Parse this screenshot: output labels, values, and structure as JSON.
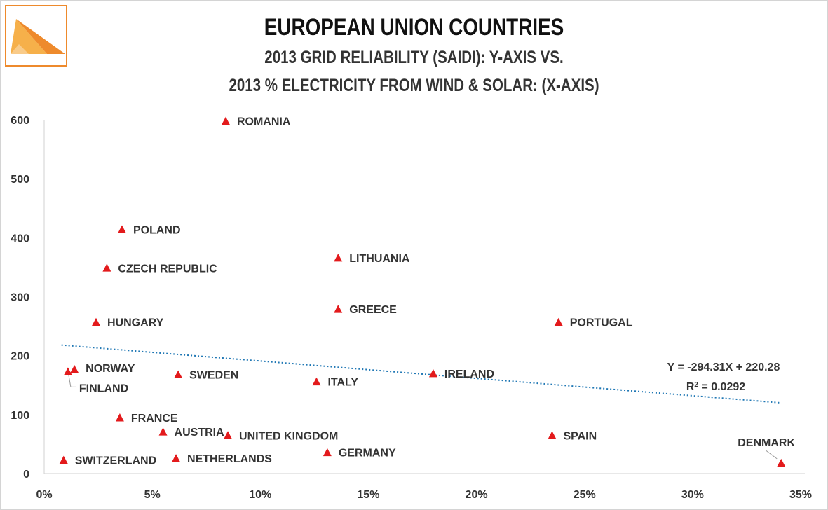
{
  "title": "EUROPEAN UNION COUNTRIES",
  "subtitle_line1": "2013 GRID RELIABILITY (SAIDI): Y-AXIS VS.",
  "subtitle_line2": "2013 % ELECTRICITY FROM WIND & SOLAR: (X-AXIS)",
  "colors": {
    "marker": "#e31a1c",
    "trendline": "#1f77b4",
    "logo_orange": "#ee8a2c",
    "logo_light": "#f6b04a"
  },
  "chart_data": {
    "type": "scatter",
    "x_ticks": [
      "0%",
      "5%",
      "10%",
      "15%",
      "20%",
      "25%",
      "30%",
      "35%"
    ],
    "y_ticks": [
      "0",
      "100",
      "200",
      "300",
      "400",
      "500",
      "600"
    ],
    "xlim": [
      0,
      0.35
    ],
    "ylim": [
      0,
      600
    ],
    "grid": false,
    "points": [
      {
        "label": "ROMANIA",
        "x": 0.084,
        "y": 598
      },
      {
        "label": "POLAND",
        "x": 0.036,
        "y": 414
      },
      {
        "label": "CZECH REPUBLIC",
        "x": 0.029,
        "y": 349
      },
      {
        "label": "LITHUANIA",
        "x": 0.136,
        "y": 366
      },
      {
        "label": "GREECE",
        "x": 0.136,
        "y": 279
      },
      {
        "label": "HUNGARY",
        "x": 0.024,
        "y": 257
      },
      {
        "label": "PORTUGAL",
        "x": 0.238,
        "y": 257
      },
      {
        "label": "NORWAY",
        "x": 0.014,
        "y": 177
      },
      {
        "label": "FINLAND",
        "x": 0.011,
        "y": 173
      },
      {
        "label": "SWEDEN",
        "x": 0.062,
        "y": 168
      },
      {
        "label": "ITALY",
        "x": 0.126,
        "y": 156
      },
      {
        "label": "IRELAND",
        "x": 0.18,
        "y": 170
      },
      {
        "label": "FRANCE",
        "x": 0.035,
        "y": 95
      },
      {
        "label": "AUSTRIA",
        "x": 0.055,
        "y": 71
      },
      {
        "label": "UNITED KINGDOM",
        "x": 0.085,
        "y": 65
      },
      {
        "label": "SPAIN",
        "x": 0.235,
        "y": 65
      },
      {
        "label": "GERMANY",
        "x": 0.131,
        "y": 36
      },
      {
        "label": "SWITZERLAND",
        "x": 0.009,
        "y": 23
      },
      {
        "label": "NETHERLANDS",
        "x": 0.061,
        "y": 26
      },
      {
        "label": "DENMARK",
        "x": 0.341,
        "y": 18
      }
    ],
    "trendline": {
      "slope": -294.31,
      "intercept": 220.28,
      "x_range": [
        0.008,
        0.341
      ],
      "equation": "Y = -294.31X + 220.28",
      "r2_label": "R",
      "r2_sup": "2",
      "r2_value": " = 0.0292"
    }
  }
}
